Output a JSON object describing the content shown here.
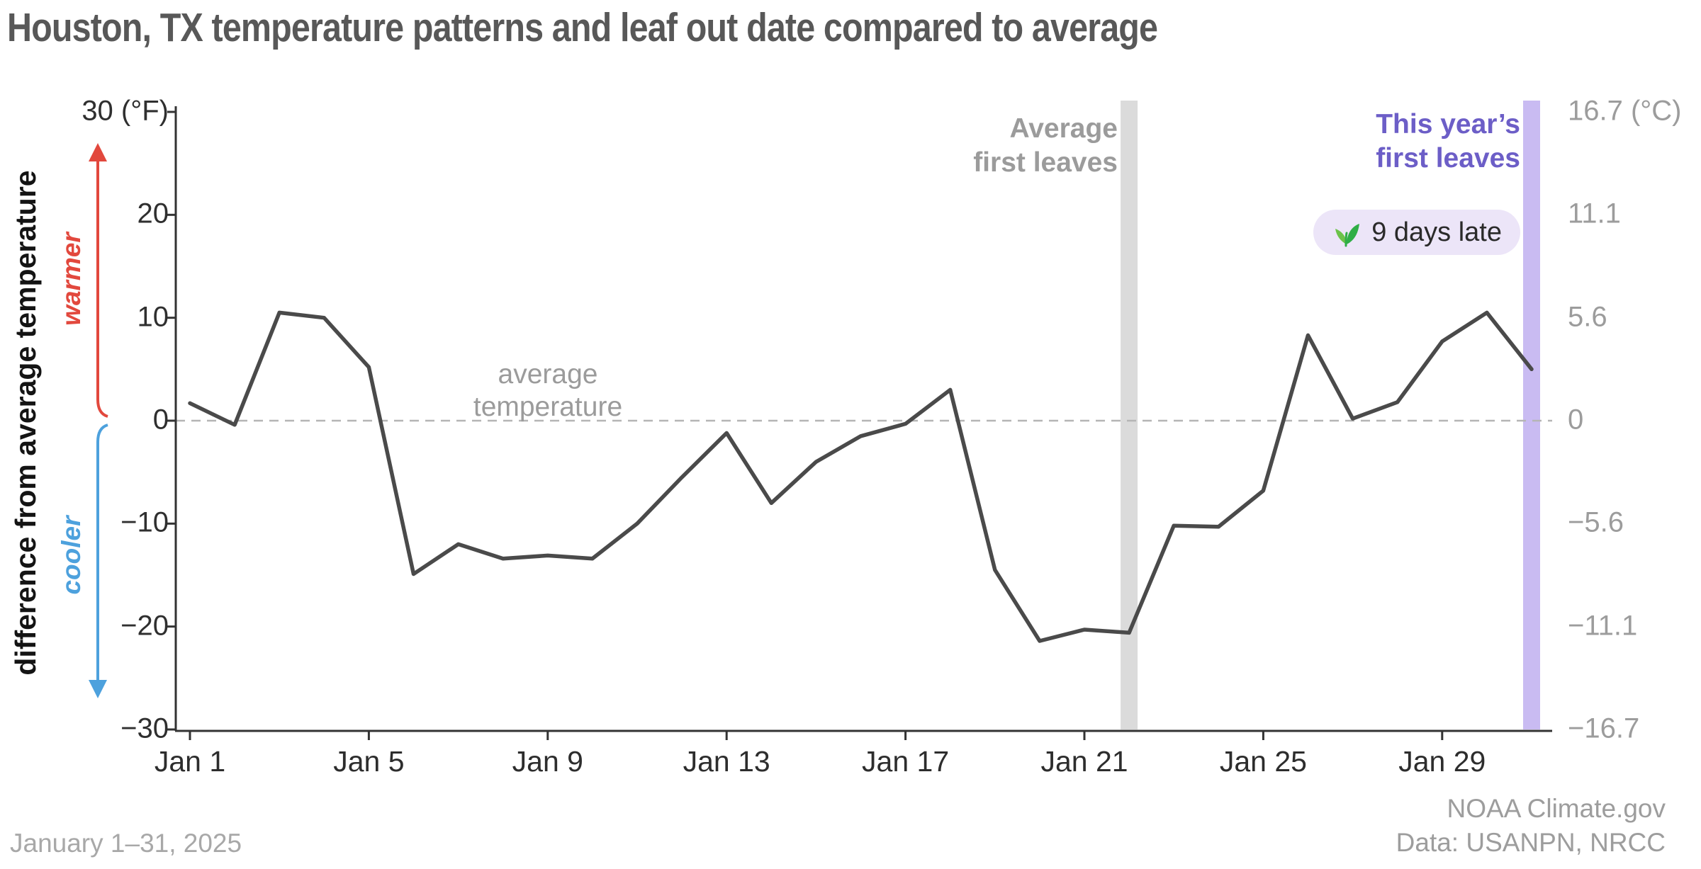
{
  "title": "Houston, TX temperature patterns and leaf out date compared to average",
  "y_axis": {
    "label": "difference from average temperature",
    "warmer_label": "warmer",
    "cooler_label": "cooler",
    "unit_f": "(°F)",
    "unit_c": "(°C)",
    "tick_values": [
      30,
      20,
      10,
      0,
      -10,
      -20,
      -30
    ],
    "labels_f": [
      "30",
      "20",
      "10",
      "0",
      "−10",
      "−20",
      "−30"
    ],
    "labels_c": [
      "16.7",
      "11.1",
      "5.6",
      "0",
      "−5.6",
      "−11.1",
      "−16.7"
    ]
  },
  "x_axis": {
    "tick_days": [
      1,
      5,
      9,
      13,
      17,
      21,
      25,
      29
    ],
    "tick_labels": [
      "Jan 1",
      "Jan 5",
      "Jan 9",
      "Jan 13",
      "Jan 17",
      "Jan 21",
      "Jan 25",
      "Jan 29"
    ]
  },
  "annotations": {
    "average_first_leaves_line1": "Average",
    "average_first_leaves_line2": "first leaves",
    "this_year_line1": "This year’s",
    "this_year_line2": "first leaves",
    "badge_text": "9 days late",
    "zero_line_line1": "average",
    "zero_line_line2": "temperature"
  },
  "footer": {
    "date_range": "January 1–31, 2025",
    "credit_line1": "NOAA Climate.gov",
    "credit_line2": "Data: USANPN, NRCC"
  },
  "colors": {
    "line": "#4a4a4a",
    "axis": "#333333",
    "zero_dash": "#b5b5b5",
    "warmer_accent": "#e2483d",
    "cooler_accent": "#4da1dd",
    "average_band": "#dbdbdb",
    "this_year_band": "#c9bbf2",
    "this_year_text": "#6c5ec7",
    "badge_bg": "#ece5f8",
    "leaf_green": "#2fae46",
    "leaf_green_light": "#6cc24a",
    "muted_gray": "#9b9b9b"
  },
  "chart_data": {
    "type": "line",
    "title": "Houston, TX temperature patterns and leaf out date compared to average",
    "xlabel": "January 1–31, 2025",
    "ylabel": "difference from average temperature",
    "ylim": [
      -30,
      30
    ],
    "y_units": [
      "°F",
      "°C"
    ],
    "zero_line_label": "average temperature",
    "x": [
      1,
      2,
      3,
      4,
      5,
      6,
      7,
      8,
      9,
      10,
      11,
      12,
      13,
      14,
      15,
      16,
      17,
      18,
      19,
      20,
      21,
      22,
      23,
      24,
      25,
      26,
      27,
      28,
      29,
      30,
      31
    ],
    "values": [
      1.7,
      -0.4,
      10.5,
      10.0,
      5.2,
      -14.9,
      -12.0,
      -13.4,
      -13.1,
      -13.4,
      -10.0,
      -5.5,
      -1.2,
      -8.0,
      -4.0,
      -1.5,
      -0.3,
      3.0,
      -14.5,
      -21.4,
      -20.3,
      -20.6,
      -10.2,
      -10.3,
      -6.8,
      8.3,
      0.2,
      1.8,
      7.7,
      10.5,
      5.0
    ],
    "events": [
      {
        "label": "Average first leaves",
        "day": 22
      },
      {
        "label": "This year’s first leaves",
        "day": 31,
        "note": "9 days late"
      }
    ]
  }
}
